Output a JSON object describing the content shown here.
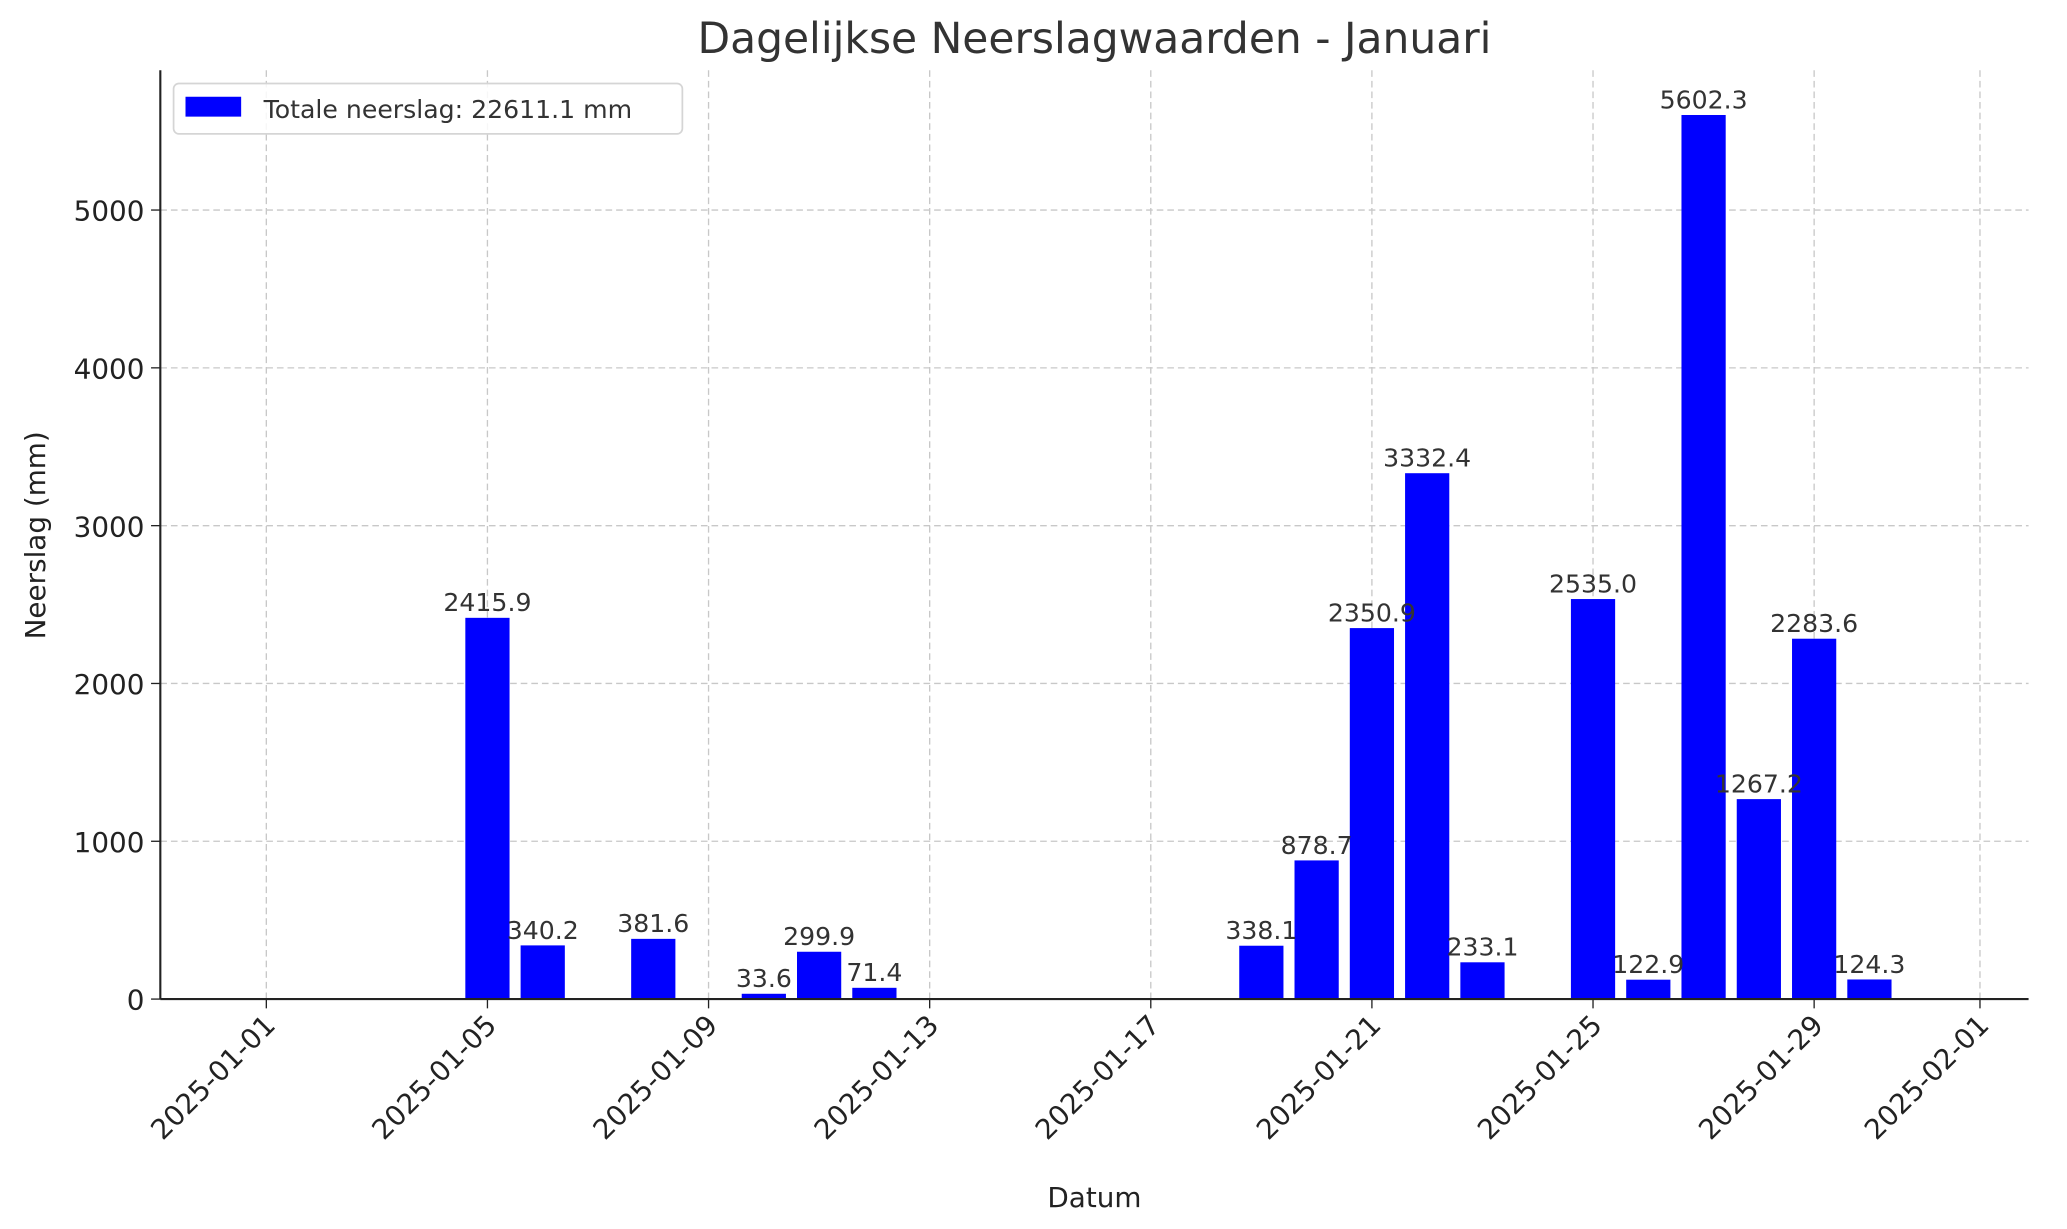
{
  "chart_data": {
    "type": "bar",
    "title": "Dagelijkse Neerslagwaarden - Januari",
    "xlabel": "Datum",
    "ylabel": "Neerslag (mm)",
    "x": [
      "2025-01-05",
      "2025-01-06",
      "2025-01-08",
      "2025-01-10",
      "2025-01-11",
      "2025-01-12",
      "2025-01-19",
      "2025-01-20",
      "2025-01-21",
      "2025-01-22",
      "2025-01-23",
      "2025-01-25",
      "2025-01-26",
      "2025-01-27",
      "2025-01-28",
      "2025-01-29",
      "2025-01-30"
    ],
    "values": [
      2415.9,
      340.2,
      381.6,
      33.6,
      299.9,
      71.4,
      338.1,
      878.7,
      2350.9,
      3332.4,
      233.1,
      2535.0,
      122.9,
      5602.3,
      1267.2,
      2283.6,
      124.3
    ],
    "data_labels": [
      "2415.9",
      "340.2",
      "381.6",
      "33.6",
      "299.9",
      "71.4",
      "338.1",
      "878.7",
      "2350.9",
      "3332.4",
      "233.1",
      "2535.0",
      "122.9",
      "5602.3",
      "1267.2",
      "2283.6",
      "124.3"
    ],
    "xticks": [
      "2025-01-01",
      "2025-01-05",
      "2025-01-09",
      "2025-01-13",
      "2025-01-17",
      "2025-01-21",
      "2025-01-25",
      "2025-01-29",
      "2025-02-01"
    ],
    "yticks": [
      "0",
      "1000",
      "2000",
      "3000",
      "4000",
      "5000"
    ],
    "ylim": [
      0,
      5882
    ],
    "xlim": [
      "2024-12-30",
      "2025-02-02"
    ],
    "grid": true,
    "legend": {
      "position": "top-left",
      "entries": [
        "Totale neerslag: 22611.1 mm"
      ]
    },
    "bar_color": "#0000ff"
  }
}
